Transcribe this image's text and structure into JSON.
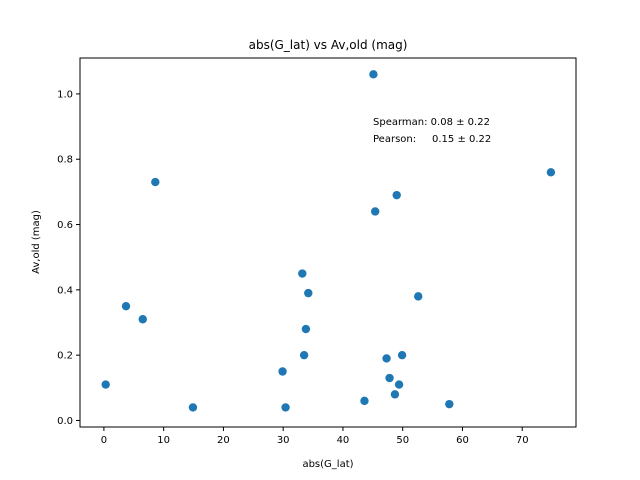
{
  "chart_data": {
    "type": "scatter",
    "title": "abs(G_lat) vs Av,old (mag)",
    "xlabel": "abs(G_lat)",
    "ylabel": "Av,old (mag)",
    "xlim": [
      -4,
      79
    ],
    "ylim": [
      -0.02,
      1.11
    ],
    "xticks": [
      0,
      10,
      20,
      30,
      40,
      50,
      60,
      70
    ],
    "yticks": [
      0.0,
      0.2,
      0.4,
      0.6,
      0.8,
      1.0
    ],
    "xtick_labels": [
      "0",
      "10",
      "20",
      "30",
      "40",
      "50",
      "60",
      "70"
    ],
    "ytick_labels": [
      "0.0",
      "0.2",
      "0.4",
      "0.6",
      "0.8",
      "1.0"
    ],
    "marker_color": "#1f77b4",
    "grid": false,
    "annotations": [
      "Spearman: 0.08 ± 0.22",
      "Pearson:     0.15 ± 0.22"
    ],
    "points": [
      {
        "x": 0.3,
        "y": 0.11
      },
      {
        "x": 3.7,
        "y": 0.35
      },
      {
        "x": 6.5,
        "y": 0.31
      },
      {
        "x": 8.6,
        "y": 0.73
      },
      {
        "x": 14.9,
        "y": 0.04
      },
      {
        "x": 29.9,
        "y": 0.15
      },
      {
        "x": 30.4,
        "y": 0.04
      },
      {
        "x": 33.2,
        "y": 0.45
      },
      {
        "x": 33.5,
        "y": 0.2
      },
      {
        "x": 33.8,
        "y": 0.28
      },
      {
        "x": 34.2,
        "y": 0.39
      },
      {
        "x": 43.6,
        "y": 0.06
      },
      {
        "x": 45.1,
        "y": 1.06
      },
      {
        "x": 45.4,
        "y": 0.64
      },
      {
        "x": 47.3,
        "y": 0.19
      },
      {
        "x": 47.8,
        "y": 0.13
      },
      {
        "x": 48.7,
        "y": 0.08
      },
      {
        "x": 49.0,
        "y": 0.69
      },
      {
        "x": 49.4,
        "y": 0.11
      },
      {
        "x": 49.9,
        "y": 0.2
      },
      {
        "x": 52.6,
        "y": 0.38
      },
      {
        "x": 57.8,
        "y": 0.05
      },
      {
        "x": 74.8,
        "y": 0.76
      }
    ]
  }
}
